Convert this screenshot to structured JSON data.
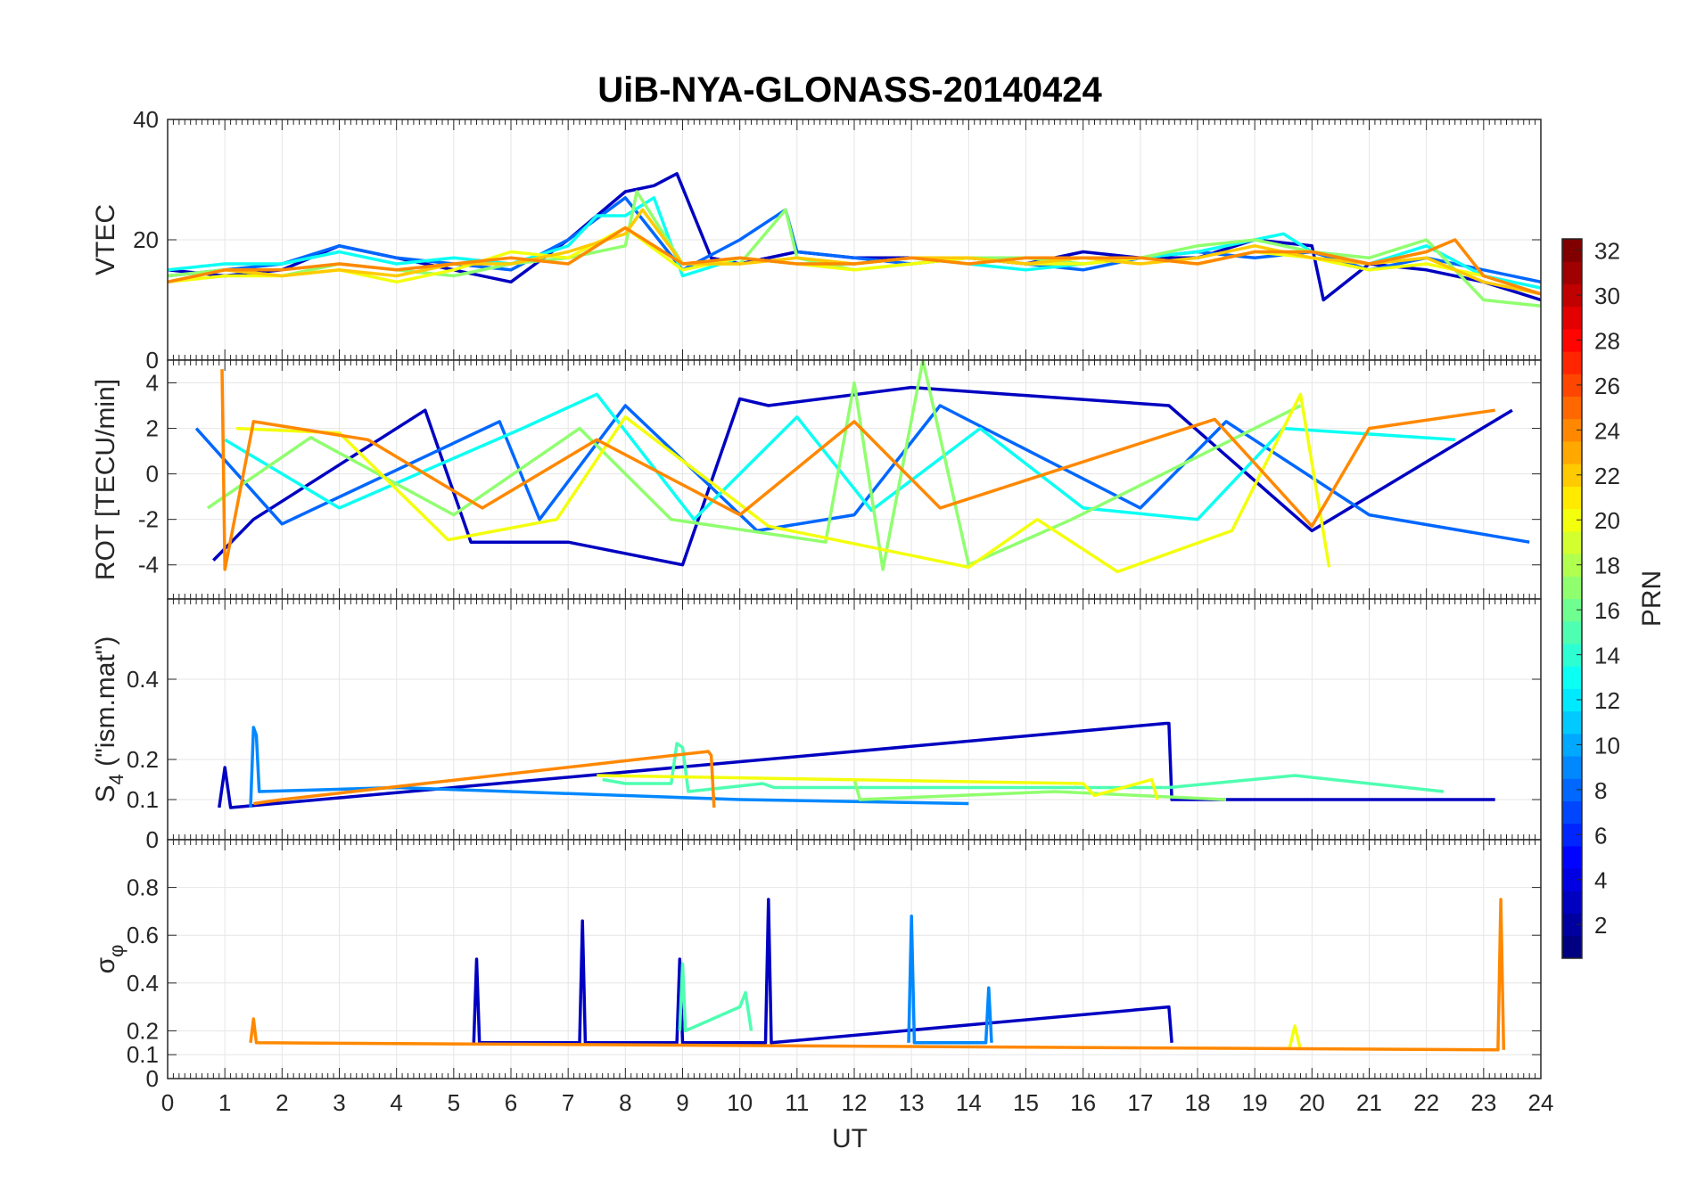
{
  "chart_data": {
    "type": "line",
    "title": "UiB-NYA-GLONASS-20140424",
    "xlabel": "UT",
    "xlim": [
      0,
      24
    ],
    "xticks": [
      0,
      1,
      2,
      3,
      4,
      5,
      6,
      7,
      8,
      9,
      10,
      11,
      12,
      13,
      14,
      15,
      16,
      17,
      18,
      19,
      20,
      21,
      22,
      23,
      24
    ],
    "grid": true,
    "colorbar": {
      "label": "PRN",
      "range": [
        1,
        32
      ],
      "colormap": "jet",
      "ticks": [
        2,
        4,
        6,
        8,
        10,
        12,
        14,
        16,
        18,
        20,
        22,
        24,
        26,
        28,
        30,
        32
      ]
    },
    "panels": [
      {
        "ylabel": "VTEC",
        "ylim": [
          0,
          40
        ],
        "yticks": [
          0,
          20,
          40
        ],
        "series": [
          {
            "prn": 3,
            "x": [
              0,
              1,
              2,
              3,
              4,
              5,
              6,
              7,
              8,
              8.5,
              8.9,
              9.5,
              10,
              11,
              12,
              13,
              14,
              15,
              16,
              17,
              18,
              19,
              20,
              20.2,
              21,
              22,
              23,
              24
            ],
            "values": [
              15,
              14,
              15,
              19,
              17,
              15,
              13,
              20,
              28,
              29,
              31,
              17,
              16,
              18,
              17,
              17,
              17,
              16,
              18,
              17,
              17,
              20,
              19,
              10,
              16,
              15,
              13,
              10
            ]
          },
          {
            "prn": 8,
            "x": [
              0,
              1,
              2,
              3,
              4,
              5,
              6,
              7,
              8,
              9,
              10,
              10.8,
              11,
              12,
              13,
              14,
              15,
              16,
              17,
              18,
              19,
              20,
              21,
              22,
              23,
              24
            ],
            "values": [
              14,
              15,
              16,
              19,
              17,
              16,
              15,
              20,
              27,
              15,
              20,
              25,
              18,
              17,
              16,
              17,
              16,
              15,
              17,
              18,
              17,
              18,
              15,
              17,
              15,
              13
            ]
          },
          {
            "prn": 13,
            "x": [
              0,
              1,
              2,
              3,
              4,
              5,
              6,
              7,
              7.5,
              8,
              8.5,
              9,
              10,
              11,
              12,
              13,
              14,
              15,
              16,
              17,
              18,
              19,
              19.5,
              20,
              21,
              22,
              23,
              24
            ],
            "values": [
              15,
              16,
              16,
              18,
              16,
              17,
              16,
              19,
              24,
              24,
              27,
              14,
              17,
              16,
              16,
              17,
              16,
              15,
              16,
              17,
              18,
              20,
              21,
              18,
              16,
              19,
              14,
              12
            ]
          },
          {
            "prn": 17,
            "x": [
              0,
              1,
              2,
              3,
              4,
              5,
              6,
              7,
              8,
              8.2,
              9,
              10,
              10.8,
              11,
              12,
              13,
              14,
              15,
              16,
              17,
              18,
              19,
              20,
              21,
              22,
              23,
              24
            ],
            "values": [
              14,
              15,
              14,
              16,
              15,
              14,
              16,
              17,
              19,
              28,
              16,
              16,
              25,
              17,
              15,
              16,
              17,
              17,
              16,
              17,
              19,
              20,
              18,
              17,
              20,
              10,
              9
            ]
          },
          {
            "prn": 20,
            "x": [
              0,
              1,
              2,
              3,
              4,
              5,
              6,
              7,
              8,
              9,
              10,
              11,
              12,
              13,
              14,
              15,
              16,
              17,
              18,
              19,
              20,
              21,
              22,
              23,
              24
            ],
            "values": [
              13,
              14,
              14,
              15,
              13,
              15,
              18,
              17,
              22,
              15,
              17,
              16,
              15,
              16,
              17,
              16,
              16,
              17,
              16,
              18,
              17,
              15,
              16,
              14,
              11
            ]
          },
          {
            "prn": 22,
            "x": [
              0,
              1,
              2,
              3,
              4,
              5,
              6,
              7,
              8,
              8.3,
              9,
              10,
              11,
              12,
              13,
              14,
              15,
              16,
              17,
              18,
              19,
              20,
              21,
              22,
              23,
              24
            ],
            "values": [
              13,
              15,
              14,
              15,
              14,
              16,
              16,
              18,
              21,
              25,
              16,
              16,
              17,
              16,
              17,
              17,
              16,
              17,
              16,
              17,
              19,
              17,
              16,
              17,
              13,
              11
            ]
          },
          {
            "prn": 24,
            "x": [
              0,
              1,
              2,
              3,
              4,
              5,
              6,
              7,
              8,
              9,
              10,
              11,
              12,
              13,
              14,
              15,
              16,
              17,
              18,
              19,
              20,
              21,
              22,
              22.5,
              23,
              24
            ],
            "values": [
              13,
              15,
              15,
              16,
              15,
              16,
              17,
              16,
              22,
              16,
              17,
              16,
              16,
              17,
              16,
              17,
              17,
              17,
              16,
              18,
              18,
              16,
              18,
              20,
              14,
              11
            ]
          }
        ]
      },
      {
        "ylabel": "ROT [TECU/min]",
        "ylim": [
          -5.5,
          5
        ],
        "yticks": [
          -4,
          -2,
          0,
          2,
          4
        ],
        "series": [
          {
            "prn": 3,
            "x": [
              0.8,
              1.5,
              4.5,
              5.3,
              7.0,
              9.0,
              10.0,
              10.5,
              13.0,
              17.5,
              20.0,
              23.5
            ],
            "values": [
              -3.8,
              -2,
              2.8,
              -3,
              -3,
              -4,
              3.3,
              3,
              3.8,
              3,
              -2.5,
              2.8
            ]
          },
          {
            "prn": 8,
            "x": [
              0.5,
              2,
              5.8,
              6.5,
              8,
              10.3,
              12,
              13.5,
              17,
              18.5,
              21,
              23.8
            ],
            "values": [
              2,
              -2.2,
              2.3,
              -2,
              3,
              -2.5,
              -1.8,
              3,
              -1.5,
              2.3,
              -1.8,
              -3
            ]
          },
          {
            "prn": 13,
            "x": [
              1,
              3,
              6.2,
              7.5,
              9.2,
              11,
              12.3,
              14.2,
              16,
              18,
              19.5,
              22.5
            ],
            "values": [
              1.5,
              -1.5,
              2,
              3.5,
              -2,
              2.5,
              -1.6,
              2,
              -1.5,
              -2,
              2,
              1.5
            ]
          },
          {
            "prn": 17,
            "x": [
              0.7,
              2.5,
              5,
              7.2,
              8.8,
              11.5,
              12,
              12.5,
              13.2,
              14,
              15.8,
              19.8
            ],
            "values": [
              -1.5,
              1.6,
              -1.8,
              2,
              -2,
              -3,
              4,
              -4.2,
              5,
              -4,
              -2,
              3
            ]
          },
          {
            "prn": 20,
            "x": [
              1.2,
              3,
              4.9,
              6.8,
              8,
              10.5,
              14,
              15.2,
              16.6,
              18.6,
              19.8,
              20.3
            ],
            "values": [
              2,
              1.8,
              -2.9,
              -2,
              2.5,
              -2.3,
              -4.1,
              -2,
              -4.3,
              -2.5,
              3.5,
              -4.1
            ]
          },
          {
            "prn": 24,
            "x": [
              0.95,
              1,
              1.5,
              3.5,
              5.5,
              7.5,
              10,
              12,
              13.5,
              18.3,
              20,
              21,
              23.2
            ],
            "values": [
              4.6,
              -4.2,
              2.3,
              1.5,
              -1.5,
              1.5,
              -1.8,
              2.3,
              -1.5,
              2.4,
              -2.3,
              2,
              2.8
            ]
          }
        ]
      },
      {
        "ylabel": "S4 (\"ism.mat\")",
        "ylabel_main": "S",
        "ylabel_sub": "4",
        "ylabel_rest": " (\"ism.mat\")",
        "ylim": [
          0,
          0.6
        ],
        "yticks": [
          0,
          0.1,
          0.2,
          0.4
        ],
        "series": [
          {
            "prn": 3,
            "x": [
              0.9,
              1.0,
              1.1,
              17.45,
              17.5,
              17.55,
              23.2
            ],
            "values": [
              0.08,
              0.18,
              0.08,
              0.29,
              0.29,
              0.1,
              0.1
            ]
          },
          {
            "prn": 9,
            "x": [
              1.45,
              1.5,
              1.55,
              1.6,
              4.0,
              10.0,
              14.0
            ],
            "values": [
              0.08,
              0.28,
              0.26,
              0.12,
              0.13,
              0.1,
              0.09
            ]
          },
          {
            "prn": 15,
            "x": [
              7.6,
              8.0,
              8.8,
              8.9,
              9.0,
              9.1,
              10.4,
              10.6,
              17.5,
              19.7,
              22.3
            ],
            "values": [
              0.15,
              0.14,
              0.14,
              0.24,
              0.23,
              0.12,
              0.14,
              0.13,
              0.13,
              0.16,
              0.12
            ]
          },
          {
            "prn": 17,
            "x": [
              12.0,
              12.1,
              15.5,
              18.5
            ],
            "values": [
              0.15,
              0.1,
              0.12,
              0.1
            ]
          },
          {
            "prn": 20,
            "x": [
              7.5,
              16.0,
              16.2,
              17.2,
              17.3
            ],
            "values": [
              0.16,
              0.14,
              0.11,
              0.15,
              0.1
            ]
          },
          {
            "prn": 24,
            "x": [
              1.5,
              2.0,
              9.45,
              9.5,
              9.55
            ],
            "values": [
              0.09,
              0.1,
              0.22,
              0.21,
              0.08
            ]
          }
        ]
      },
      {
        "ylabel": "σφ",
        "ylabel_main": "σ",
        "ylabel_sub": "φ",
        "ylim": [
          0,
          1
        ],
        "yticks": [
          0,
          0.1,
          0.2,
          0.4,
          0.6,
          0.8
        ],
        "series": [
          {
            "prn": 3,
            "x": [
              5.35,
              5.4,
              5.45,
              7.2,
              7.25,
              7.3,
              8.9,
              8.95,
              9.0,
              10.45,
              10.5,
              10.55,
              17.5,
              17.55
            ],
            "values": [
              0.15,
              0.5,
              0.15,
              0.15,
              0.66,
              0.15,
              0.15,
              0.5,
              0.15,
              0.15,
              0.75,
              0.15,
              0.3,
              0.15
            ]
          },
          {
            "prn": 9,
            "x": [
              12.95,
              13.0,
              13.05,
              14.3,
              14.35,
              14.4
            ],
            "values": [
              0.15,
              0.68,
              0.15,
              0.15,
              0.38,
              0.15
            ]
          },
          {
            "prn": 15,
            "x": [
              8.95,
              9.0,
              9.05,
              10.0,
              10.1,
              10.2
            ],
            "values": [
              0.2,
              0.48,
              0.2,
              0.3,
              0.36,
              0.2
            ]
          },
          {
            "prn": 20,
            "x": [
              19.6,
              19.7,
              19.8
            ],
            "values": [
              0.12,
              0.22,
              0.12
            ]
          },
          {
            "prn": 24,
            "x": [
              1.45,
              1.5,
              1.55,
              23.25,
              23.3,
              23.35
            ],
            "values": [
              0.15,
              0.25,
              0.15,
              0.12,
              0.75,
              0.12
            ]
          }
        ]
      }
    ]
  }
}
